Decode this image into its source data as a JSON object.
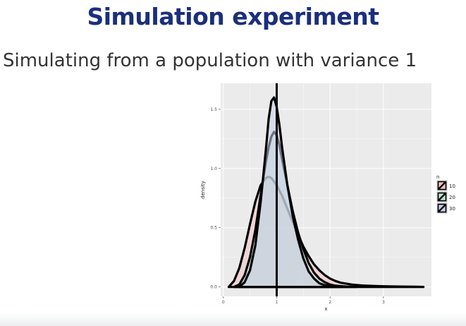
{
  "slide": {
    "title": "Simulation experiment",
    "subtitle": "Simulating from a population with variance 1"
  },
  "colors": {
    "title": "#1b2f7c",
    "panel_bg": "#ebebeb",
    "grid": "#ffffff",
    "outline": "#000000",
    "vline": "#000000"
  },
  "chart_data": {
    "type": "area",
    "title": "",
    "xlabel": "x",
    "ylabel": "density",
    "xlim": [
      -0.05,
      3.9
    ],
    "ylim": [
      -0.08,
      1.72
    ],
    "x_ticks": [
      0,
      1,
      2,
      3
    ],
    "y_ticks": [
      0.0,
      0.5,
      1.0,
      1.5
    ],
    "x_tick_labels": [
      "0",
      "1",
      "2",
      "3"
    ],
    "y_tick_labels": [
      "0.0",
      "0.5",
      "1.0",
      "1.5"
    ],
    "grid": true,
    "vline_x": 1.0,
    "legend": {
      "title": "n",
      "position": "right",
      "entries": [
        "10",
        "20",
        "30"
      ]
    },
    "series": [
      {
        "name": "10",
        "fill": "#f3c1c6",
        "x": [
          0.1,
          0.2,
          0.3,
          0.4,
          0.5,
          0.6,
          0.7,
          0.8,
          0.85,
          0.9,
          1.0,
          1.1,
          1.2,
          1.3,
          1.4,
          1.5,
          1.6,
          1.7,
          1.8,
          1.9,
          2.0,
          2.1,
          2.2,
          2.4,
          2.6,
          2.8,
          3.0,
          3.3,
          3.6,
          3.75
        ],
        "y": [
          0.0,
          0.05,
          0.16,
          0.33,
          0.53,
          0.72,
          0.86,
          0.92,
          0.93,
          0.92,
          0.86,
          0.77,
          0.66,
          0.55,
          0.44,
          0.34,
          0.26,
          0.19,
          0.14,
          0.1,
          0.07,
          0.05,
          0.035,
          0.02,
          0.012,
          0.008,
          0.005,
          0.003,
          0.001,
          0.0
        ]
      },
      {
        "name": "20",
        "fill": "#bfe3d2",
        "x": [
          0.2,
          0.3,
          0.4,
          0.5,
          0.6,
          0.7,
          0.8,
          0.85,
          0.9,
          0.95,
          1.0,
          1.05,
          1.1,
          1.2,
          1.3,
          1.4,
          1.5,
          1.6,
          1.7,
          1.8,
          1.9,
          2.0,
          2.1,
          2.3,
          2.5
        ],
        "y": [
          0.0,
          0.02,
          0.1,
          0.25,
          0.48,
          0.78,
          1.06,
          1.18,
          1.27,
          1.31,
          1.28,
          1.2,
          1.08,
          0.86,
          0.64,
          0.46,
          0.32,
          0.2,
          0.12,
          0.07,
          0.04,
          0.02,
          0.01,
          0.003,
          0.0
        ]
      },
      {
        "name": "30",
        "fill": "#c9cde8",
        "x": [
          0.3,
          0.4,
          0.5,
          0.6,
          0.7,
          0.8,
          0.85,
          0.9,
          0.95,
          1.0,
          1.05,
          1.1,
          1.2,
          1.3,
          1.4,
          1.5,
          1.6,
          1.7,
          1.8,
          1.9,
          2.0,
          2.2
        ],
        "y": [
          0.0,
          0.04,
          0.14,
          0.35,
          0.72,
          1.17,
          1.42,
          1.57,
          1.6,
          1.52,
          1.37,
          1.18,
          0.86,
          0.6,
          0.4,
          0.24,
          0.13,
          0.07,
          0.03,
          0.015,
          0.005,
          0.0
        ]
      }
    ]
  }
}
